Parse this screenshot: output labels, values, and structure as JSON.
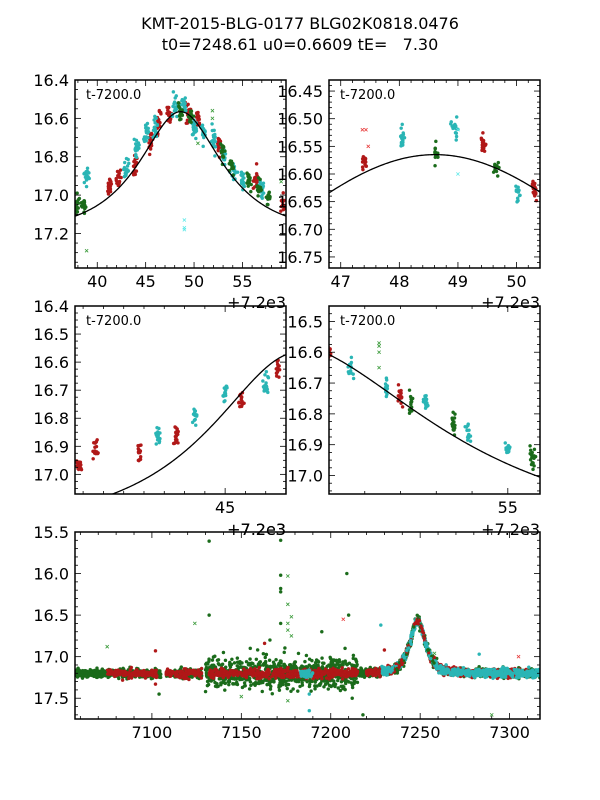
{
  "figure": {
    "title_line1": "KMT-2015-BLG-0177 BLG02K0818.0476",
    "title_line2": "t0=7248.61 u0=0.6609 tE=   7.30"
  },
  "model": {
    "t0": 7248.61,
    "u0": 0.6609,
    "tE": 7.3,
    "baseline_mag": 17.2,
    "peak_mag": 16.565
  },
  "colors": {
    "series_red": "#b01818",
    "series_cyan": "#2ab5b5",
    "series_green": "#1a6b1a",
    "outlier_red": "#e83a3a",
    "outlier_cyan": "#5ee8e8",
    "outlier_green": "#3a9a3a",
    "model_line": "#000000"
  },
  "chart_data": [
    {
      "id": "panel-overview-peak",
      "type": "scatter",
      "annotation": "t-7200.0",
      "xlabel": "",
      "ylabel": "",
      "x_offset_label": "",
      "xlim": [
        37.7,
        59.5
      ],
      "ylim": [
        16.4,
        17.38
      ],
      "y_inverted": true,
      "xticks": [
        40,
        45,
        50,
        55
      ],
      "xtick_labels": [
        "40",
        "45",
        "50",
        "55"
      ],
      "yticks": [
        16.4,
        16.6,
        16.8,
        17.0,
        17.2
      ],
      "ytick_labels": [
        "16.4",
        "16.6",
        "16.8",
        "17.0",
        "17.2"
      ],
      "grid": false,
      "series": [
        {
          "name": "red",
          "marker": "dot",
          "clusters": [
            [
              41.3,
              16.96
            ],
            [
              42.2,
              16.92
            ],
            [
              43.9,
              16.85
            ],
            [
              45.5,
              16.72
            ],
            [
              46.3,
              16.62
            ],
            [
              47.4,
              16.58
            ],
            [
              49.4,
              16.57
            ],
            [
              50.4,
              16.61
            ],
            [
              52.6,
              16.73
            ],
            [
              56.4,
              16.92
            ],
            [
              59.3,
              17.04
            ]
          ]
        },
        {
          "name": "cyan",
          "marker": "dot",
          "clusters": [
            [
              38.9,
              16.9
            ],
            [
              43.0,
              16.87
            ],
            [
              44.1,
              16.76
            ],
            [
              45.1,
              16.68
            ],
            [
              46.0,
              16.65
            ],
            [
              48.0,
              16.54
            ],
            [
              48.9,
              16.54
            ],
            [
              50.0,
              16.65
            ],
            [
              51.0,
              16.67
            ],
            [
              52.0,
              16.71
            ],
            [
              53.0,
              16.79
            ],
            [
              54.1,
              16.87
            ],
            [
              55.0,
              16.91
            ],
            [
              57.0,
              16.97
            ]
          ]
        },
        {
          "name": "green",
          "marker": "dot",
          "clusters": [
            [
              37.9,
              17.06
            ],
            [
              38.6,
              17.05
            ],
            [
              48.6,
              16.57
            ],
            [
              49.6,
              16.6
            ],
            [
              52.9,
              16.76
            ],
            [
              53.9,
              16.84
            ],
            [
              55.6,
              16.92
            ],
            [
              56.7,
              16.96
            ],
            [
              57.7,
              17.01
            ]
          ]
        },
        {
          "name": "outliers",
          "marker": "x",
          "points": [
            [
              49.0,
              17.13
            ],
            [
              49.0,
              17.17
            ],
            [
              49.0,
              17.18
            ],
            [
              51.9,
              16.56
            ],
            [
              51.9,
              16.6
            ],
            [
              50.4,
              16.73
            ],
            [
              59.0,
              16.93
            ],
            [
              38.9,
              17.29
            ]
          ]
        }
      ],
      "model": "PSPL curve through peak ~16.565 at t=48.61"
    },
    {
      "id": "panel-zoom-peak",
      "type": "scatter",
      "annotation": "t-7200.0",
      "x_offset_label": "+7.2e3",
      "xlim": [
        46.8,
        50.4
      ],
      "ylim": [
        16.43,
        16.77
      ],
      "y_inverted": true,
      "xticks": [
        47,
        48,
        49,
        50
      ],
      "xtick_labels": [
        "47",
        "48",
        "49",
        "50"
      ],
      "yticks": [
        16.45,
        16.5,
        16.55,
        16.6,
        16.65,
        16.7,
        16.75
      ],
      "ytick_labels": [
        "16.45",
        "16.50",
        "16.55",
        "16.60",
        "16.65",
        "16.70",
        "16.75"
      ],
      "grid": false,
      "series": [
        {
          "name": "red",
          "marker": "dot",
          "clusters": [
            [
              47.4,
              16.58
            ],
            [
              49.43,
              16.55
            ],
            [
              50.3,
              16.63
            ]
          ]
        },
        {
          "name": "cyan",
          "marker": "dot",
          "clusters": [
            [
              48.05,
              16.535
            ],
            [
              48.95,
              16.52
            ],
            [
              50.02,
              16.64
            ]
          ]
        },
        {
          "name": "green",
          "marker": "dot",
          "clusters": [
            [
              48.63,
              16.565
            ],
            [
              49.65,
              16.585
            ]
          ]
        },
        {
          "name": "outliers",
          "marker": "x",
          "points": [
            [
              47.37,
              16.52
            ],
            [
              47.43,
              16.52
            ],
            [
              47.47,
              16.55
            ],
            [
              49.0,
              16.52
            ],
            [
              49.0,
              16.6
            ]
          ]
        }
      ]
    },
    {
      "id": "panel-rising",
      "type": "scatter",
      "annotation": "t-7200.0",
      "x_offset_label": "+7.2e3",
      "xlim": [
        37.6,
        48.0
      ],
      "ylim": [
        16.4,
        17.07
      ],
      "y_inverted": true,
      "xticks": [
        45
      ],
      "xtick_labels": [
        "45"
      ],
      "yticks": [
        16.4,
        16.5,
        16.6,
        16.7,
        16.8,
        16.9,
        17.0
      ],
      "ytick_labels": [
        "16.4",
        "16.5",
        "16.6",
        "16.7",
        "16.8",
        "16.9",
        "17.0"
      ],
      "grid": false,
      "series": [
        {
          "name": "red",
          "marker": "dot",
          "clusters": [
            [
              37.8,
              16.96
            ],
            [
              38.6,
              16.91
            ],
            [
              40.8,
              16.92
            ],
            [
              42.6,
              16.86
            ],
            [
              45.8,
              16.74
            ],
            [
              47.6,
              16.62
            ]
          ]
        },
        {
          "name": "cyan",
          "marker": "dot",
          "clusters": [
            [
              41.7,
              16.86
            ],
            [
              43.5,
              16.79
            ],
            [
              45.0,
              16.71
            ],
            [
              47.0,
              16.68
            ]
          ]
        }
      ]
    },
    {
      "id": "panel-falling",
      "type": "scatter",
      "annotation": "t-7200.0",
      "x_offset_label": "+7.2e3",
      "xlim": [
        50.0,
        55.9
      ],
      "ylim": [
        16.45,
        17.06
      ],
      "y_inverted": true,
      "xticks": [
        55
      ],
      "xtick_labels": [
        "55"
      ],
      "yticks": [
        16.5,
        16.6,
        16.7,
        16.8,
        16.9,
        17.0
      ],
      "ytick_labels": [
        "16.5",
        "16.6",
        "16.7",
        "16.8",
        "16.9",
        "17.0"
      ],
      "grid": false,
      "series": [
        {
          "name": "red",
          "marker": "dot",
          "clusters": [
            [
              50.0,
              16.6
            ],
            [
              52.0,
              16.74
            ]
          ]
        },
        {
          "name": "cyan",
          "marker": "dot",
          "clusters": [
            [
              50.6,
              16.65
            ],
            [
              51.6,
              16.72
            ],
            [
              52.7,
              16.76
            ],
            [
              53.9,
              16.86
            ],
            [
              55.0,
              16.91
            ]
          ]
        },
        {
          "name": "green",
          "marker": "dot",
          "clusters": [
            [
              52.3,
              16.77
            ],
            [
              53.5,
              16.83
            ],
            [
              55.7,
              16.94
            ]
          ]
        },
        {
          "name": "outliers",
          "marker": "x",
          "points": [
            [
              51.4,
              16.57
            ],
            [
              51.4,
              16.58
            ],
            [
              51.4,
              16.6
            ],
            [
              51.4,
              16.65
            ]
          ]
        }
      ]
    },
    {
      "id": "panel-full",
      "type": "scatter",
      "annotation": "",
      "x_offset_label": "+7.2e3",
      "xlim": [
        7057,
        7317
      ],
      "ylim": [
        15.5,
        17.75
      ],
      "y_inverted": true,
      "xticks": [
        7100,
        7150,
        7200,
        7250,
        7300
      ],
      "xtick_labels": [
        "7100",
        "7150",
        "7200",
        "7250",
        "7300"
      ],
      "yticks": [
        15.5,
        16.0,
        16.5,
        17.0,
        17.5
      ],
      "ytick_labels": [
        "15.5",
        "16.0",
        "16.5",
        "17.0",
        "17.5"
      ],
      "grid": false,
      "baseline_mag": 17.2,
      "baseline_ranges": {
        "red": [
          [
            7075,
            7103
          ],
          [
            7108,
            7128
          ],
          [
            7132,
            7215
          ],
          [
            7220,
            7243
          ],
          [
            7255,
            7310
          ]
        ],
        "green": [
          [
            7057,
            7105
          ],
          [
            7108,
            7128
          ],
          [
            7130,
            7317
          ]
        ],
        "cyan": [
          [
            7183,
            7190
          ],
          [
            7228,
            7317
          ]
        ]
      },
      "scatter_ranges": {
        "green_noisy": [
          7130,
          7215
        ]
      },
      "series_outliers": [
        {
          "name": "green",
          "marker": "dot",
          "points": [
            [
              7132,
              15.61
            ],
            [
              7172,
              15.6
            ],
            [
              7172,
              16.02
            ],
            [
              7172,
              16.18
            ],
            [
              7172,
              16.22
            ],
            [
              7132,
              16.5
            ],
            [
              7172,
              16.6
            ],
            [
              7209,
              16.0
            ],
            [
              7130,
              17.42
            ],
            [
              7104,
              17.45
            ],
            [
              7140,
              16.95
            ],
            [
              7155,
              16.9
            ],
            [
              7166,
              16.8
            ],
            [
              7210,
              16.5
            ],
            [
              7208,
              16.9
            ],
            [
              7212,
              17.5
            ],
            [
              7195,
              16.7
            ],
            [
              7218,
              17.7
            ]
          ]
        },
        {
          "name": "green",
          "marker": "x",
          "points": [
            [
              7075,
              16.88
            ],
            [
              7124,
              16.6
            ],
            [
              7176,
              16.03
            ],
            [
              7176,
              16.37
            ],
            [
              7176,
              16.6
            ],
            [
              7176,
              16.68
            ],
            [
              7178,
              16.52
            ],
            [
              7178,
              16.75
            ],
            [
              7176,
              17.53
            ],
            [
              7150,
              17.48
            ],
            [
              7258,
              16.96
            ],
            [
              7290,
              17.7
            ]
          ]
        },
        {
          "name": "cyan",
          "marker": "dot",
          "points": [
            [
              7188,
              17.45
            ],
            [
              7188,
              17.65
            ],
            [
              7228,
              16.62
            ],
            [
              7245,
              16.85
            ],
            [
              7283,
              16.97
            ]
          ]
        },
        {
          "name": "red",
          "marker": "dot",
          "points": [
            [
              7102,
              16.93
            ],
            [
              7102,
              17.33
            ],
            [
              7163,
              16.84
            ],
            [
              7230,
              16.92
            ]
          ]
        },
        {
          "name": "red",
          "marker": "x",
          "points": [
            [
              7207,
              16.55
            ],
            [
              7305,
              17.0
            ]
          ]
        }
      ]
    }
  ]
}
